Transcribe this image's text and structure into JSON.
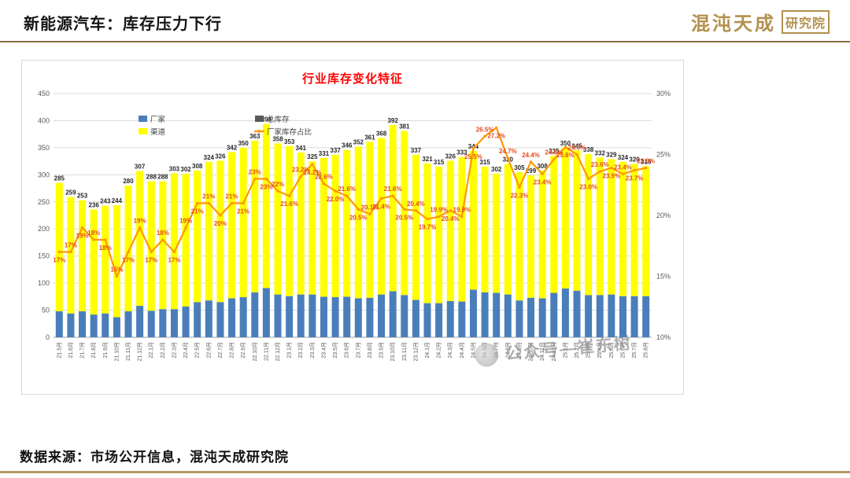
{
  "header": {
    "title": "新能源汽车：库存压力下行",
    "logo_main": "混沌天成",
    "logo_box": "研究院"
  },
  "footer": {
    "source": "数据来源：市场公开信息，混沌天成研究院"
  },
  "watermark": {
    "text": "公众号—崔东树"
  },
  "chart_data": {
    "type": "bar",
    "subtype": "stacked-bars-with-line",
    "title": "行业库存变化特征",
    "title_color": "#ff0000",
    "legend_position": "inside-top-left",
    "left_axis": {
      "min": 0,
      "max": 450,
      "step": 50
    },
    "right_axis": {
      "min": 10,
      "max": 30,
      "step": 5,
      "unit": "%"
    },
    "colors": {
      "pct_label": "#e64a19",
      "grid": "#dcdcdc",
      "axis_text": "#595959",
      "total_label": "#262626"
    },
    "categories": [
      "21.5月",
      "21.6月",
      "21.7月",
      "21.8月",
      "21.9月",
      "21.10月",
      "21.11月",
      "21.12月",
      "22.1月",
      "22.2月",
      "22.3月",
      "22.4月",
      "22.5月",
      "22.6月",
      "22.7月",
      "22.8月",
      "22.9月",
      "22.10月",
      "22.11月",
      "22.12月",
      "23.1月",
      "23.2月",
      "23.3月",
      "23.4月",
      "23.5月",
      "23.6月",
      "23.7月",
      "23.8月",
      "23.9月",
      "23.10月",
      "23.11月",
      "23.12月",
      "24.1月",
      "24.2月",
      "24.3月",
      "24.4月",
      "24.5月",
      "24.6月",
      "24.7月",
      "24.8月",
      "24.9月",
      "24.10月",
      "24.11月",
      "24.12月",
      "25.1月",
      "25.2月",
      "25.3月",
      "25.4月",
      "25.5月",
      "25.6月",
      "25.7月",
      "25.8月"
    ],
    "series": [
      {
        "name": "厂家",
        "type": "bar",
        "stack": "inventory",
        "color": "#4a7ebb",
        "values": [
          48,
          44,
          48,
          42,
          44,
          37,
          48,
          58,
          49,
          52,
          52,
          57,
          65,
          68,
          65,
          72,
          74,
          83,
          91,
          79,
          76,
          79,
          79,
          75,
          74,
          75,
          72,
          73,
          79,
          85,
          78,
          69,
          63,
          63,
          67,
          66,
          88,
          83,
          82,
          79,
          68,
          73,
          72,
          82,
          90,
          86,
          78,
          78,
          79,
          76,
          76,
          76
        ]
      },
      {
        "name": "渠道",
        "type": "bar",
        "stack": "inventory",
        "color": "#ffff00",
        "values": [
          237,
          215,
          205,
          194,
          199,
          207,
          232,
          249,
          239,
          236,
          251,
          245,
          243,
          256,
          261,
          270,
          276,
          280,
          303,
          279,
          277,
          262,
          246,
          256,
          263,
          271,
          280,
          288,
          289,
          307,
          303,
          268,
          258,
          252,
          259,
          267,
          256,
          232,
          220,
          241,
          237,
          226,
          236,
          253,
          260,
          259,
          260,
          254,
          250,
          248,
          244,
          240
        ]
      },
      {
        "name": "总库存",
        "type": "label",
        "color": "#595959",
        "values": [
          285,
          259,
          253,
          236,
          243,
          244,
          280,
          307,
          288,
          288,
          303,
          302,
          308,
          324,
          326,
          342,
          350,
          363,
          394,
          358,
          353,
          341,
          325,
          331,
          337,
          346,
          352,
          361,
          368,
          392,
          381,
          337,
          321,
          315,
          326,
          333,
          344,
          315,
          302,
          320,
          305,
          299,
          308,
          335,
          350,
          345,
          338,
          332,
          329,
          324,
          320,
          316
        ]
      },
      {
        "name": "厂家库存占比",
        "type": "line",
        "axis": "right",
        "color": "#ff9900",
        "values": [
          17,
          17,
          19,
          18,
          18,
          15,
          17,
          19,
          17,
          18,
          17,
          19,
          21,
          21,
          20,
          21,
          21,
          23,
          23,
          22,
          21.6,
          23.2,
          24.2,
          22.6,
          22,
          21.6,
          20.5,
          20.1,
          21.4,
          21.6,
          20.5,
          20.4,
          19.7,
          19.9,
          20.4,
          19.9,
          25.5,
          26.5,
          27.2,
          24.7,
          22.3,
          24.4,
          23.4,
          24.6,
          25.6,
          25,
          23,
          23.6,
          23.9,
          23.4,
          23.7,
          23.9
        ],
        "labels": [
          "17%",
          "17%",
          "19%",
          "18%",
          "18%",
          "15%",
          "17%",
          "19%",
          "17%",
          "18%",
          "17%",
          "19%",
          "21%",
          "21%",
          "20%",
          "21%",
          "21%",
          "23%",
          "23%",
          "22%",
          "21.6%",
          "23.2%",
          "24.2%",
          "22.6%",
          "22.0%",
          "21.6%",
          "20.5%",
          "20.1%",
          "21.4%",
          "21.6%",
          "20.5%",
          "20.4%",
          "19.7%",
          "19.9%",
          "20.4%",
          "19.9%",
          "25.5%",
          "26.5%",
          "27.2%",
          "24.7%",
          "22.3%",
          "24.4%",
          "23.4%",
          "24.6%",
          "25.6%",
          "25.0%",
          "23.0%",
          "23.6%",
          "23.9%",
          "23.4%",
          "23.7%",
          "23.9%"
        ]
      }
    ]
  }
}
